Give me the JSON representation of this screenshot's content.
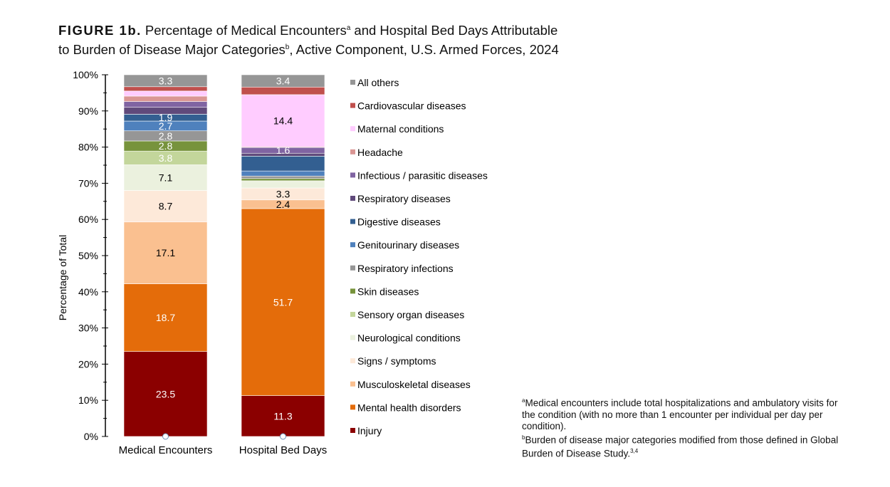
{
  "title": {
    "prefix": "FIGURE 1b.",
    "text1": "Percentage of Medical Encounters",
    "sup1": "a",
    "text2": "and Hospital Bed Days Attributable to Burden of Disease Major Categories",
    "sup2": "b",
    "text3": ", Active Component, U.S. Armed Forces, 2024"
  },
  "footnotes": [
    {
      "mark": "a",
      "text": "Medical encounters include total hospitalizations and ambulatory visits for the condition (with no more than 1 encounter per individual per day per condition)."
    },
    {
      "mark": "b",
      "text": "Burden of disease major categories modified from those defined in Global Burden of Disease Study.",
      "ref": "3,4"
    }
  ],
  "chart_data": {
    "type": "bar",
    "stacked": true,
    "ylabel": "Percentage of Total",
    "ylim": [
      0,
      100
    ],
    "yticks": [
      "0%",
      "10%",
      "20%",
      "30%",
      "40%",
      "50%",
      "60%",
      "70%",
      "80%",
      "90%",
      "100%"
    ],
    "categories": [
      "Medical Encounters",
      "Hospital Bed Days"
    ],
    "legend_position": "right",
    "series": [
      {
        "name": "Injury",
        "color": "#8B0000",
        "values": [
          23.5,
          11.3
        ],
        "labels": [
          "23.5",
          "11.3"
        ],
        "label_color": "#fff"
      },
      {
        "name": "Mental health disorders",
        "color": "#E46C0A",
        "values": [
          18.7,
          51.7
        ],
        "labels": [
          "18.7",
          "51.7"
        ],
        "label_color": "#fff"
      },
      {
        "name": "Musculoskeletal diseases",
        "color": "#FAC090",
        "values": [
          17.1,
          2.4
        ],
        "labels": [
          "17.1",
          "2.4"
        ],
        "label_color": "#000"
      },
      {
        "name": "Signs / symptoms",
        "color": "#FDE9D9",
        "values": [
          8.7,
          3.3
        ],
        "labels": [
          "8.7",
          "3.3"
        ],
        "label_color": "#000"
      },
      {
        "name": "Neurological conditions",
        "color": "#EBF1DE",
        "values": [
          7.1,
          1.8
        ],
        "labels": [
          "7.1",
          ""
        ],
        "label_color": "#000"
      },
      {
        "name": "Sensory organ diseases",
        "color": "#C3D69B",
        "values": [
          3.8,
          0.2
        ],
        "labels": [
          "3.8",
          ""
        ],
        "label_color": "#fff"
      },
      {
        "name": "Skin diseases",
        "color": "#77933C",
        "values": [
          2.8,
          0.6
        ],
        "labels": [
          "2.8",
          ""
        ],
        "label_color": "#fff"
      },
      {
        "name": "Respiratory infections",
        "color": "#969696",
        "values": [
          2.8,
          0.7
        ],
        "labels": [
          "2.8",
          ""
        ],
        "label_color": "#fff"
      },
      {
        "name": "Genitourinary diseases",
        "color": "#4F81BD",
        "values": [
          2.7,
          1.4
        ],
        "labels": [
          "2.7",
          ""
        ],
        "label_color": "#fff"
      },
      {
        "name": "Digestive diseases",
        "color": "#335F91",
        "values": [
          1.9,
          4.1
        ],
        "labels": [
          "1.9",
          ""
        ],
        "label_color": "#fff"
      },
      {
        "name": "Respiratory diseases",
        "color": "#604A7B",
        "values": [
          1.9,
          0.8
        ],
        "labels": [
          "",
          ""
        ],
        "label_color": "#fff"
      },
      {
        "name": "Infectious / parasitic diseases",
        "color": "#8064A2",
        "values": [
          1.6,
          1.6
        ],
        "labels": [
          "",
          "1.6"
        ],
        "label_color": "#fff"
      },
      {
        "name": "Headache",
        "color": "#DA9694",
        "values": [
          1.5,
          0.2
        ],
        "labels": [
          "",
          ""
        ],
        "label_color": "#000"
      },
      {
        "name": "Maternal conditions",
        "color": "#FFCCFF",
        "values": [
          1.4,
          14.4
        ],
        "labels": [
          "",
          "14.4"
        ],
        "label_color": "#000"
      },
      {
        "name": "Cardiovascular diseases",
        "color": "#C0504D",
        "values": [
          1.2,
          2.1
        ],
        "labels": [
          "",
          ""
        ],
        "label_color": "#fff"
      },
      {
        "name": "All others",
        "color": "#969696",
        "values": [
          3.3,
          3.4
        ],
        "labels": [
          "3.3",
          "3.4"
        ],
        "label_color": "#fff"
      }
    ]
  }
}
